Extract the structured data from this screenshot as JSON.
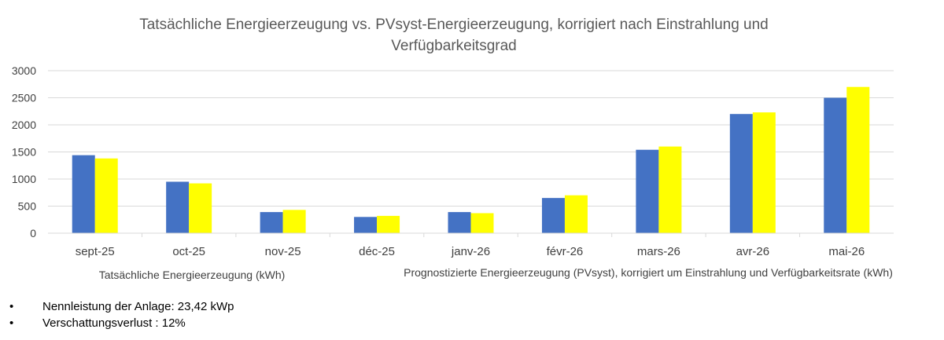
{
  "chart_data": {
    "type": "bar",
    "title_lines": [
      "Tatsächliche Energieerzeugung vs. PVsyst-Energieerzeugung, korrigiert nach Einstrahlung und",
      "Verfügbarkeitsgrad"
    ],
    "categories": [
      "sept-25",
      "oct-25",
      "nov-25",
      "déc-25",
      "janv-26",
      "févr-26",
      "mars-26",
      "avr-26",
      "mai-26"
    ],
    "series": [
      {
        "name": "Tatsächliche Energieerzeugung (kWh)",
        "color": "#4472C4",
        "values": [
          1440,
          950,
          390,
          300,
          390,
          650,
          1540,
          2200,
          2500
        ]
      },
      {
        "name": "Prognostizierte Energieerzeugung (PVsyst), korrigiert um Einstrahlung und Verfügbarkeitsrate (kWh)",
        "color": "#FFFF00",
        "values": [
          1380,
          920,
          430,
          320,
          370,
          700,
          1600,
          2230,
          2700
        ]
      }
    ],
    "ylim": [
      0,
      3000
    ],
    "yticks": [
      0,
      500,
      1000,
      1500,
      2000,
      2500,
      3000
    ],
    "grid": true,
    "legend_position": "bottom",
    "gridline_color": "#D9D9D9"
  },
  "notes": {
    "bullet_symbol": "•",
    "items": [
      "Nennleistung der Anlage: 23,42 kWp",
      "Verschattungsverlust : 12%"
    ]
  }
}
